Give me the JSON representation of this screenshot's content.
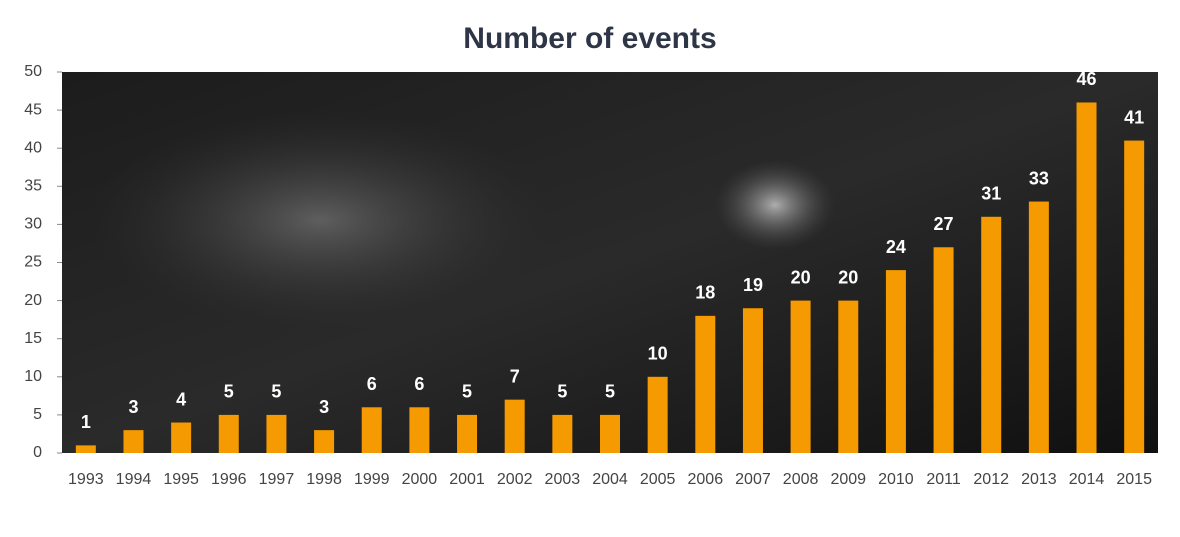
{
  "chart_data": {
    "type": "bar",
    "title": "Number of events",
    "categories": [
      "1993",
      "1994",
      "1995",
      "1996",
      "1997",
      "1998",
      "1999",
      "2000",
      "2001",
      "2002",
      "2003",
      "2004",
      "2005",
      "2006",
      "2007",
      "2008",
      "2009",
      "2010",
      "2011",
      "2012",
      "2013",
      "2014",
      "2015"
    ],
    "values": [
      1,
      3,
      4,
      5,
      5,
      3,
      6,
      6,
      5,
      7,
      5,
      5,
      10,
      18,
      19,
      20,
      20,
      24,
      27,
      31,
      33,
      46,
      41
    ],
    "color": "#f59a00",
    "ylim": [
      0,
      50
    ],
    "yticks": [
      0,
      5,
      10,
      15,
      20,
      25,
      30,
      35,
      40,
      45,
      50
    ],
    "grid": false
  }
}
